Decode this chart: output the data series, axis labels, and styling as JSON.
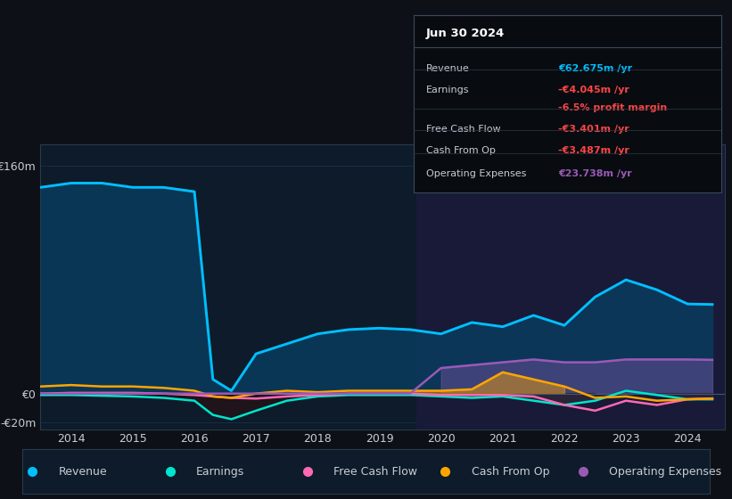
{
  "background_color": "#0d1117",
  "plot_bg_color": "#0d1b2a",
  "grid_color": "#1e3a5f",
  "text_color": "#c8cdd4",
  "title_color": "#ffffff",
  "years": [
    2013.5,
    2014,
    2014.5,
    2015,
    2015.5,
    2016,
    2016.3,
    2016.6,
    2017,
    2017.5,
    2018,
    2018.5,
    2019,
    2019.5,
    2020,
    2020.5,
    2021,
    2021.5,
    2022,
    2022.5,
    2023,
    2023.5,
    2024,
    2024.4
  ],
  "revenue": [
    145,
    148,
    148,
    145,
    145,
    142,
    10,
    2,
    28,
    35,
    42,
    45,
    46,
    45,
    42,
    50,
    47,
    55,
    48,
    68,
    80,
    73,
    63,
    62.675
  ],
  "revenue_color": "#00bfff",
  "revenue_fill": "#0a3a5c",
  "earnings": [
    -1,
    -1,
    -1.5,
    -2,
    -3,
    -5,
    -15,
    -18,
    -12,
    -5,
    -2,
    -1,
    -1,
    -1,
    -2,
    -3,
    -2,
    -5,
    -8,
    -5,
    2,
    -1,
    -4,
    -4.045
  ],
  "earnings_color": "#00e5cc",
  "free_cash_flow": [
    0,
    0.5,
    0.5,
    0.5,
    0,
    -1,
    -2,
    -3,
    -3.5,
    -2,
    -1,
    0,
    0,
    0,
    -1,
    -1,
    -1,
    -2,
    -8,
    -12,
    -5,
    -8,
    -4,
    -3.401
  ],
  "free_cash_flow_color": "#ff69b4",
  "cash_from_op": [
    5,
    6,
    5,
    5,
    4,
    2,
    -2,
    -3,
    0,
    2,
    1,
    2,
    2,
    2,
    2,
    3,
    15,
    10,
    5,
    -3,
    -2,
    -5,
    -4,
    -3.487
  ],
  "cash_from_op_color": "#ffa500",
  "operating_expenses": [
    0,
    0,
    0,
    0,
    0,
    0,
    0,
    0,
    0,
    0,
    0,
    0,
    0,
    0,
    18,
    20,
    22,
    24,
    22,
    22,
    24,
    24,
    24,
    23.738
  ],
  "operating_expenses_color": "#9b59b6",
  "ylim": [
    -25,
    175
  ],
  "yticks": [
    -20,
    0,
    160
  ],
  "ytick_labels": [
    "-€20m",
    "€0",
    "€160m"
  ],
  "xlim": [
    2013.5,
    2024.6
  ],
  "xticks": [
    2014,
    2015,
    2016,
    2017,
    2018,
    2019,
    2020,
    2021,
    2022,
    2023,
    2024
  ],
  "info_box_date": "Jun 30 2024",
  "info_rows": [
    {
      "label": "Revenue",
      "value": "€62.675m /yr",
      "value_color": "#00bfff"
    },
    {
      "label": "Earnings",
      "value": "-€4.045m /yr",
      "value_color": "#ff4444"
    },
    {
      "label": "",
      "value": "-6.5% profit margin",
      "value_color": "#ff4444"
    },
    {
      "label": "Free Cash Flow",
      "value": "-€3.401m /yr",
      "value_color": "#ff4444"
    },
    {
      "label": "Cash From Op",
      "value": "-€3.487m /yr",
      "value_color": "#ff4444"
    },
    {
      "label": "Operating Expenses",
      "value": "€23.738m /yr",
      "value_color": "#9b59b6"
    }
  ],
  "legend_items": [
    {
      "label": "Revenue",
      "color": "#00bfff"
    },
    {
      "label": "Earnings",
      "color": "#00e5cc"
    },
    {
      "label": "Free Cash Flow",
      "color": "#ff69b4"
    },
    {
      "label": "Cash From Op",
      "color": "#ffa500"
    },
    {
      "label": "Operating Expenses",
      "color": "#9b59b6"
    }
  ],
  "shaded_region_start": 2019.6,
  "shaded_region_end": 2024.6,
  "shaded_region_color": "#1a1a3a"
}
